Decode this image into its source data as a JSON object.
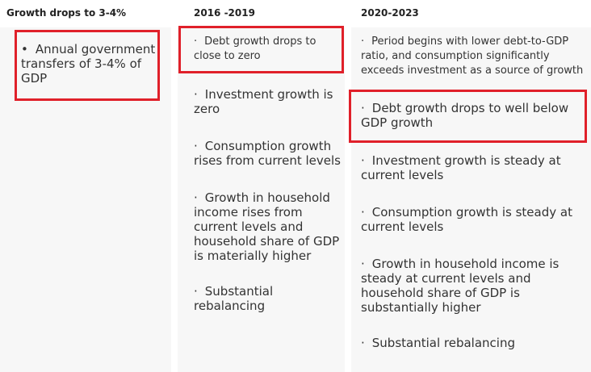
{
  "headers": {
    "col1": "Growth drops to 3-4%",
    "col2": "2016 -2019",
    "col3": "2020-2023"
  },
  "col1_items": [
    "Annual government transfers of 3-4% of GDP"
  ],
  "col2_items": [
    "Debt growth drops to close to zero",
    "Investment growth is zero",
    "Consumption growth rises from current levels",
    "Growth in household income rises from current levels and household share of GDP is materially higher",
    "Substantial rebalancing"
  ],
  "col3_items": [
    "Period begins with lower debt-to-GDP ratio, and consumption significantly exceeds investment as a source of growth",
    "Debt growth drops to well below GDP growth",
    "Investment growth is steady at current levels",
    "Consumption growth is steady at current levels",
    "Growth in household income is steady at current levels and household share of GDP is substantially higher",
    "Substantial rebalancing"
  ],
  "bullets": {
    "dot": "•",
    "middot": "·"
  },
  "colors": {
    "highlight": "#e0202a",
    "panel_bg": "#f7f7f7",
    "text": "#333333"
  }
}
